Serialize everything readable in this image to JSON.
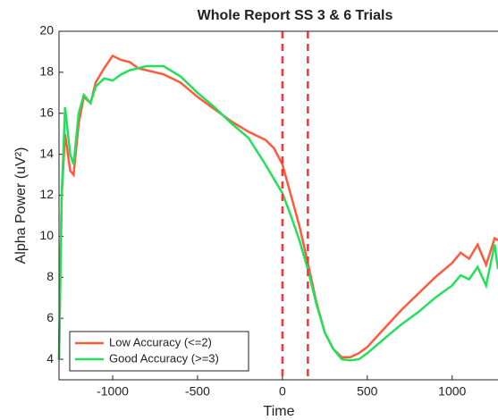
{
  "chart_data": {
    "type": "line",
    "title": "Whole Report SS 3 & 6 Trials",
    "x_label": "Time",
    "y_label": "Alpha Power (uV²)",
    "x": [
      -1316,
      -1300,
      -1280,
      -1250,
      -1230,
      -1200,
      -1170,
      -1130,
      -1100,
      -1050,
      -1000,
      -950,
      -900,
      -850,
      -800,
      -700,
      -600,
      -500,
      -400,
      -300,
      -200,
      -100,
      -50,
      0,
      50,
      100,
      150,
      200,
      250,
      300,
      350,
      400,
      450,
      500,
      600,
      700,
      800,
      900,
      1000,
      1050,
      1100,
      1150,
      1200,
      1250,
      1270
    ],
    "series": [
      {
        "name": "Low Accuracy (<=2)",
        "color": "#ff5a3c",
        "values": [
          4,
          12,
          15,
          13.2,
          13,
          15.5,
          16.8,
          16.5,
          17.5,
          18.2,
          18.8,
          18.6,
          18.5,
          18.2,
          18.1,
          17.9,
          17.5,
          16.8,
          16.2,
          15.6,
          15.1,
          14.7,
          14.3,
          13.5,
          12,
          10.5,
          8.7,
          6.8,
          5.3,
          4.5,
          4.1,
          4.1,
          4.3,
          4.6,
          5.5,
          6.4,
          7.2,
          8,
          8.7,
          9.2,
          8.9,
          9.6,
          8.6,
          9.9,
          9.8
        ]
      },
      {
        "name": "Good Accuracy (>=3)",
        "color": "#22e05a",
        "values": [
          4,
          12,
          16.3,
          14,
          13.5,
          16,
          16.9,
          16.5,
          17.3,
          17.7,
          17.6,
          17.9,
          18.1,
          18.2,
          18.3,
          18.3,
          17.8,
          17,
          16.3,
          15.5,
          14.8,
          13.5,
          12.8,
          12.1,
          11,
          9.8,
          8.4,
          6.7,
          5.3,
          4.5,
          4,
          3.95,
          4,
          4.3,
          5,
          5.7,
          6.3,
          7,
          7.6,
          8.1,
          7.9,
          8.5,
          7.6,
          9.6,
          8.4
        ]
      }
    ],
    "vlines": [
      0,
      150
    ],
    "vline_color": "#ff3333",
    "xlim": [
      -1316,
      1270
    ],
    "xticks": [
      -1000,
      -500,
      0,
      500,
      1000
    ],
    "ylim": [
      3,
      20
    ],
    "yticks": [
      4,
      6,
      8,
      10,
      12,
      14,
      16,
      18,
      20
    ],
    "legend": "lower left"
  }
}
